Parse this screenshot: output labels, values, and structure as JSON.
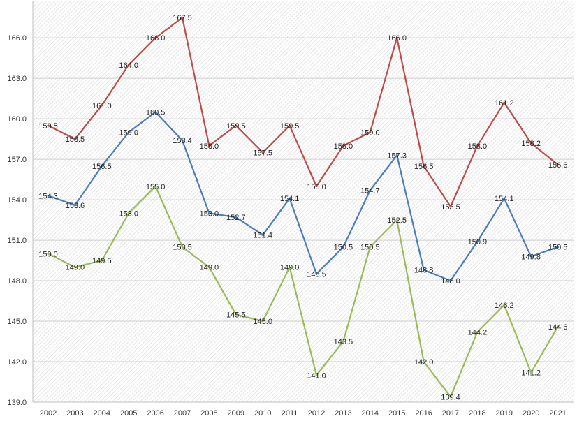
{
  "chart_data": {
    "type": "line",
    "title": "",
    "xlabel": "",
    "ylabel": "",
    "categories": [
      "2002",
      "2003",
      "2004",
      "2005",
      "2006",
      "2007",
      "2008",
      "2009",
      "2010",
      "2011",
      "2012",
      "2013",
      "2014",
      "2015",
      "2016",
      "2017",
      "2018",
      "2019",
      "2020",
      "2021"
    ],
    "ylim": [
      139.0,
      167.5
    ],
    "yticks": [
      "139.0",
      "142.0",
      "145.0",
      "148.0",
      "151.0",
      "154.0",
      "157.0",
      "160.0",
      "163.0",
      "166.0"
    ],
    "grid": true,
    "legend": "none",
    "series": [
      {
        "name": "red",
        "color": "#be4b48",
        "values": [
          159.5,
          158.5,
          161.0,
          164.0,
          166.0,
          167.5,
          158.0,
          159.5,
          157.5,
          159.5,
          155.0,
          158.0,
          159.0,
          166.0,
          156.5,
          153.5,
          158.0,
          161.2,
          158.2,
          156.6
        ],
        "labels": [
          "159.5",
          "158.5",
          "161.0",
          "164.0",
          "166.0",
          "167.5",
          "158.0",
          "159.5",
          "157.5",
          "159.5",
          "155.0",
          "158.0",
          "159.0",
          "166.0",
          "156.5",
          "153.5",
          "158.0",
          "161.2",
          "158.2",
          "156.6"
        ]
      },
      {
        "name": "blue",
        "color": "#4a7ebb",
        "values": [
          154.3,
          153.6,
          156.5,
          159.0,
          160.5,
          158.4,
          153.0,
          152.7,
          151.4,
          154.1,
          148.5,
          150.5,
          154.7,
          157.3,
          148.8,
          148.0,
          150.9,
          154.1,
          149.8,
          150.5
        ],
        "labels": [
          "154.3",
          "153.6",
          "156.5",
          "159.0",
          "160.5",
          "158.4",
          "153.0",
          "152.7",
          "151.4",
          "154.1",
          "148.5",
          "150.5",
          "154.7",
          "157.3",
          "148.8",
          "148.0",
          "150.9",
          "154.1",
          "149.8",
          "150.5"
        ]
      },
      {
        "name": "green",
        "color": "#9bbb59",
        "values": [
          150.0,
          149.0,
          149.5,
          153.0,
          155.0,
          150.5,
          149.0,
          145.5,
          145.0,
          149.0,
          141.0,
          143.5,
          150.5,
          152.5,
          142.0,
          139.4,
          144.2,
          146.2,
          141.2,
          144.6
        ],
        "labels": [
          "150.0",
          "149.0",
          "149.5",
          "153.0",
          "155.0",
          "150.5",
          "149.0",
          "145.5",
          "145.0",
          "149.0",
          "141.0",
          "143.5",
          "150.5",
          "152.5",
          "142.0",
          "139.4",
          "144.2",
          "146.2",
          "141.2",
          "144.6"
        ]
      }
    ]
  }
}
